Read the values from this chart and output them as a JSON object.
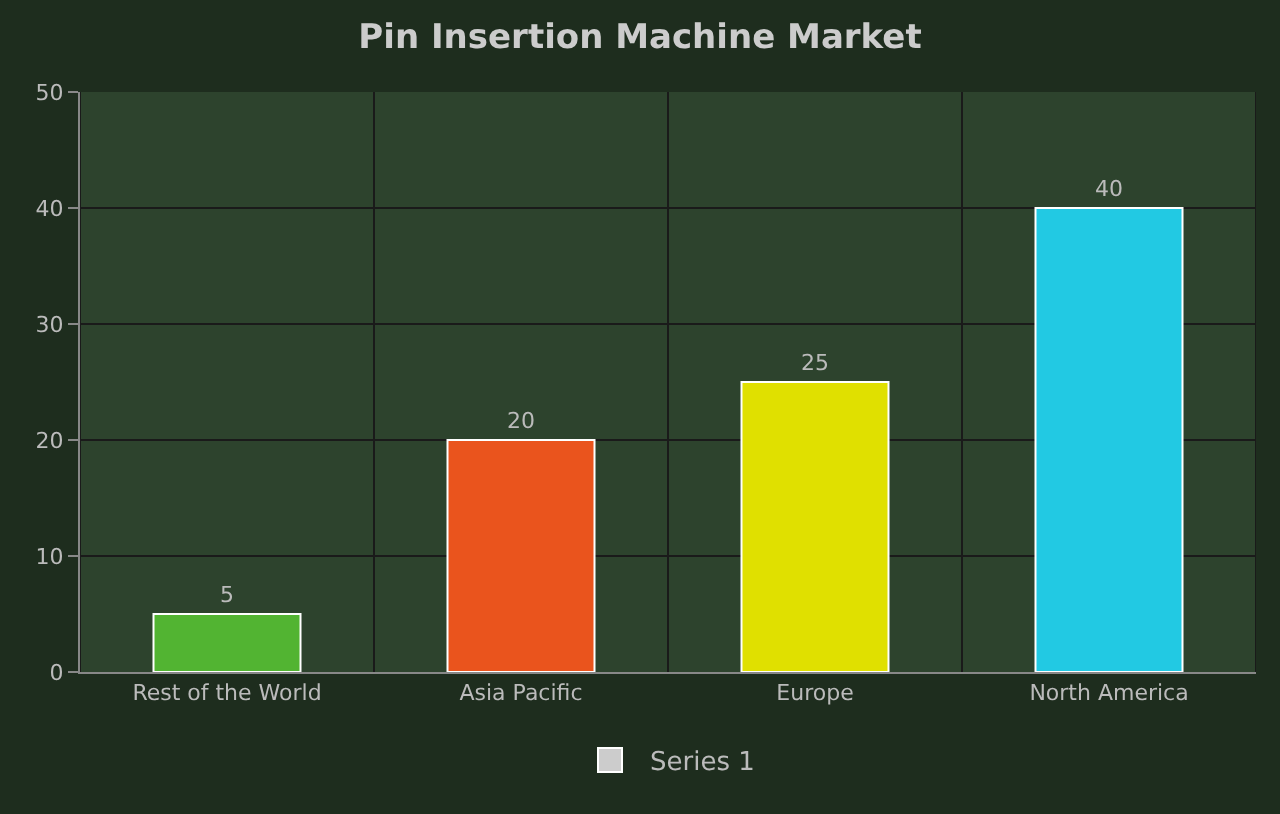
{
  "chart_data": {
    "type": "bar",
    "title": "Pin Insertion Machine Market",
    "categories": [
      "Rest of the World",
      "Asia Pacific",
      "Europe",
      "North America"
    ],
    "series": [
      {
        "name": "Series 1",
        "color": "#cccccc",
        "colors": [
          "#52b432",
          "#ea541d",
          "#e0e000",
          "#22c9e3"
        ],
        "values": [
          5,
          20,
          25,
          40
        ]
      }
    ],
    "ylim": [
      0,
      50
    ],
    "yticks": [
      0,
      10,
      20,
      30,
      40,
      50
    ],
    "grid": true,
    "legend": "bottom",
    "data_labels": true
  }
}
